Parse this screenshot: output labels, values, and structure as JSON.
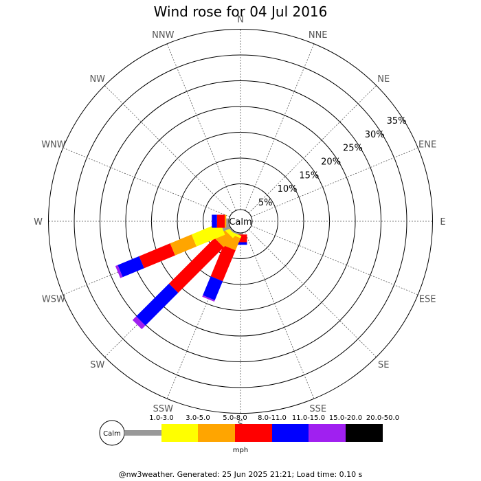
{
  "chart_data": {
    "type": "windrose",
    "title": "Wind rose for 04 Jul 2016",
    "directions": [
      "N",
      "NNE",
      "NE",
      "ENE",
      "E",
      "ESE",
      "SE",
      "SSE",
      "S",
      "SSW",
      "SW",
      "WSW",
      "W",
      "WNW",
      "NW",
      "NNW"
    ],
    "radial_ticks": [
      "5%",
      "10%",
      "15%",
      "20%",
      "25%",
      "30%",
      "35%"
    ],
    "radial_values": [
      5,
      10,
      15,
      20,
      25,
      30,
      35
    ],
    "r_max": 35,
    "calm_label": "Calm",
    "unit": "mph",
    "speed_bins": [
      {
        "label": "1.0-3.0",
        "color": "#999999"
      },
      {
        "label": "3.0-5.0",
        "color": "#ffff00"
      },
      {
        "label": "5.0-8.0",
        "color": "#ffa500"
      },
      {
        "label": "8.0-11.0",
        "color": "#ff0000"
      },
      {
        "label": "11.0-15.0",
        "color": "#0000ff"
      },
      {
        "label": "15.0-20.0",
        "color": "#a020f0"
      },
      {
        "label": "20.0-50.0",
        "color": "#000000"
      }
    ],
    "series": [
      {
        "direction": "S",
        "values": [
          0.3,
          0.0,
          0.0,
          1.5,
          0.5,
          0.0,
          0.0
        ]
      },
      {
        "direction": "SSW",
        "values": [
          0.3,
          0.5,
          2.5,
          6.5,
          4.0,
          0.3,
          0.0
        ]
      },
      {
        "direction": "SW",
        "values": [
          0.3,
          0.8,
          2.5,
          12.5,
          9.0,
          1.0,
          0.0
        ]
      },
      {
        "direction": "WSW",
        "values": [
          1.5,
          6.0,
          4.5,
          6.5,
          4.5,
          0.5,
          0.0
        ]
      },
      {
        "direction": "W",
        "values": [
          0.5,
          0.0,
          0.3,
          1.5,
          1.0,
          0.0,
          0.0
        ]
      }
    ]
  },
  "footer": "@nw3weather. Generated: 25 Jun 2025 21:21; Load time: 0.10 s"
}
